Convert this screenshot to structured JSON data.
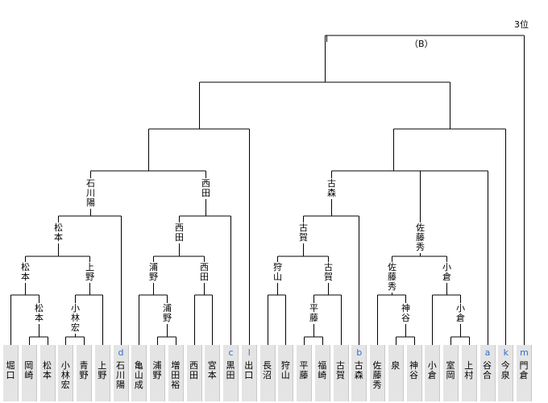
{
  "header": {
    "place_label": "3位",
    "section_label": "（B）"
  },
  "players": [
    {
      "name": "堀口",
      "seed": ""
    },
    {
      "name": "岡崎",
      "seed": ""
    },
    {
      "name": "松本",
      "seed": ""
    },
    {
      "name": "小林宏",
      "seed": ""
    },
    {
      "name": "青野",
      "seed": ""
    },
    {
      "name": "上野",
      "seed": ""
    },
    {
      "name": "石川陽",
      "seed": "d"
    },
    {
      "name": "亀山成",
      "seed": ""
    },
    {
      "name": "浦野",
      "seed": ""
    },
    {
      "name": "増田裕",
      "seed": ""
    },
    {
      "name": "西田",
      "seed": ""
    },
    {
      "name": "宮本",
      "seed": ""
    },
    {
      "name": "黒田",
      "seed": "c"
    },
    {
      "name": "出口",
      "seed": "l"
    },
    {
      "name": "長沼",
      "seed": ""
    },
    {
      "name": "狩山",
      "seed": ""
    },
    {
      "name": "平藤",
      "seed": ""
    },
    {
      "name": "福崎",
      "seed": ""
    },
    {
      "name": "古賀",
      "seed": ""
    },
    {
      "name": "古森",
      "seed": "b"
    },
    {
      "name": "佐藤秀",
      "seed": ""
    },
    {
      "name": "泉",
      "seed": ""
    },
    {
      "name": "神谷",
      "seed": ""
    },
    {
      "name": "小倉",
      "seed": ""
    },
    {
      "name": "室岡",
      "seed": ""
    },
    {
      "name": "上村",
      "seed": ""
    },
    {
      "name": "谷合",
      "seed": "a"
    },
    {
      "name": "今泉",
      "seed": "k"
    },
    {
      "name": "門倉",
      "seed": "m"
    }
  ],
  "winners": [
    "松本",
    "小林宏",
    "松本",
    "上野",
    "松本",
    "石川陽",
    "浦野",
    "浦野",
    "西田",
    "西田",
    "西田",
    "狩山",
    "平藤",
    "古賀",
    "古賀",
    "古森",
    "神谷",
    "佐藤秀",
    "小倉",
    "小倉",
    "佐藤秀"
  ]
}
